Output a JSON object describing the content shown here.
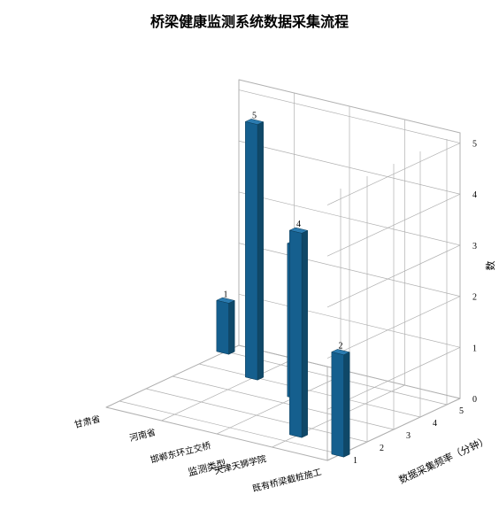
{
  "chart": {
    "type": "bar3d",
    "title": "桥梁健康监测系统数据采集流程",
    "title_fontsize": 16,
    "title_color": "#000000",
    "background_color": "#ffffff",
    "grid_color": "#b0b0b0",
    "pane_color": "#ffffff",
    "bar_face_color": "#155f8e",
    "bar_side_color": "#0f4868",
    "bar_top_color": "#2b7bb0",
    "value_label_color": "#000000",
    "value_label_fontsize": 10,
    "axis_label_fontsize": 11,
    "tick_label_fontsize": 10,
    "x": {
      "label": "监测类型",
      "categories": [
        "甘肃省",
        "河南省",
        "邯郸东环立交桥",
        "天津天狮学院",
        "既有桥梁截桩施工"
      ]
    },
    "y": {
      "label": "数据采集频率（分钟）",
      "ticks": [
        1,
        2,
        3,
        4,
        5
      ],
      "range": [
        0.5,
        5.5
      ]
    },
    "z": {
      "label": "数",
      "ticks": [
        0,
        1,
        2,
        3,
        4,
        5
      ],
      "range": [
        0,
        5.2
      ]
    },
    "bars": [
      {
        "xi": 0,
        "y": 5.0,
        "z": 1
      },
      {
        "xi": 1,
        "y": 4.0,
        "z": 5
      },
      {
        "xi": 2,
        "y": 3.5,
        "z": 3
      },
      {
        "xi": 3,
        "y": 1.5,
        "z": 4
      },
      {
        "xi": 4,
        "y": 1.0,
        "z": 2
      }
    ],
    "bar_width": 0.22,
    "bar_depth": 0.22
  }
}
